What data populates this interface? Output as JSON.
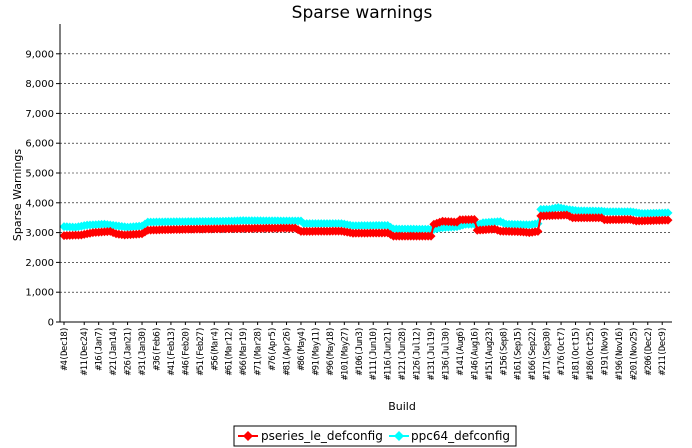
{
  "chart_data": {
    "type": "line",
    "title": "Sparse warnings",
    "xlabel": "Build",
    "ylabel": "Sparse Warnings",
    "ylim": [
      0,
      10000
    ],
    "yticks": [
      0,
      1000,
      2000,
      3000,
      4000,
      5000,
      6000,
      7000,
      8000,
      9000
    ],
    "ytick_labels": [
      "0",
      "1,000",
      "2,000",
      "3,000",
      "4,000",
      "5,000",
      "6,000",
      "7,000",
      "8,000",
      "9,000"
    ],
    "xrange": [
      4,
      213
    ],
    "xticks": [
      {
        "x": 4,
        "label": "#4(Dec18)"
      },
      {
        "x": 11,
        "label": "#11(Dec24)"
      },
      {
        "x": 16,
        "label": "#16(Jan7)"
      },
      {
        "x": 21,
        "label": "#21(Jan14)"
      },
      {
        "x": 26,
        "label": "#26(Jan21)"
      },
      {
        "x": 31,
        "label": "#31(Jan30)"
      },
      {
        "x": 36,
        "label": "#36(Feb6)"
      },
      {
        "x": 41,
        "label": "#41(Feb13)"
      },
      {
        "x": 46,
        "label": "#46(Feb20)"
      },
      {
        "x": 51,
        "label": "#51(Feb27)"
      },
      {
        "x": 56,
        "label": "#56(Mar4)"
      },
      {
        "x": 61,
        "label": "#61(Mar12)"
      },
      {
        "x": 66,
        "label": "#66(Mar19)"
      },
      {
        "x": 71,
        "label": "#71(Mar28)"
      },
      {
        "x": 76,
        "label": "#76(Apr5)"
      },
      {
        "x": 81,
        "label": "#81(Apr26)"
      },
      {
        "x": 86,
        "label": "#86(May4)"
      },
      {
        "x": 91,
        "label": "#91(May11)"
      },
      {
        "x": 96,
        "label": "#96(May18)"
      },
      {
        "x": 101,
        "label": "#101(May27)"
      },
      {
        "x": 106,
        "label": "#106(Jun3)"
      },
      {
        "x": 111,
        "label": "#111(Jun10)"
      },
      {
        "x": 116,
        "label": "#116(Jun21)"
      },
      {
        "x": 121,
        "label": "#121(Jun28)"
      },
      {
        "x": 126,
        "label": "#126(Jul12)"
      },
      {
        "x": 131,
        "label": "#131(Jul19)"
      },
      {
        "x": 136,
        "label": "#136(Jul30)"
      },
      {
        "x": 141,
        "label": "#141(Aug6)"
      },
      {
        "x": 146,
        "label": "#146(Aug16)"
      },
      {
        "x": 151,
        "label": "#151(Aug23)"
      },
      {
        "x": 156,
        "label": "#156(Sep8)"
      },
      {
        "x": 161,
        "label": "#161(Sep15)"
      },
      {
        "x": 166,
        "label": "#166(Sep22)"
      },
      {
        "x": 171,
        "label": "#171(Sep30)"
      },
      {
        "x": 176,
        "label": "#176(Oct7)"
      },
      {
        "x": 181,
        "label": "#181(Oct15)"
      },
      {
        "x": 186,
        "label": "#186(Oct25)"
      },
      {
        "x": 191,
        "label": "#191(Nov9)"
      },
      {
        "x": 196,
        "label": "#196(Nov16)"
      },
      {
        "x": 201,
        "label": "#201(Nov25)"
      },
      {
        "x": 206,
        "label": "#206(Dec2)"
      },
      {
        "x": 211,
        "label": "#211(Dec9)"
      }
    ],
    "series": [
      {
        "name": "pseries_le_defconfig",
        "color": "#ff0000",
        "marker": "diamond",
        "segments": [
          [
            4,
            2900
          ],
          [
            10,
            2920
          ],
          [
            14,
            3000
          ],
          [
            20,
            3040
          ],
          [
            22,
            2960
          ],
          [
            25,
            2920
          ],
          [
            28,
            2940
          ],
          [
            31,
            2960
          ],
          [
            33,
            3080
          ],
          [
            40,
            3100
          ],
          [
            60,
            3130
          ],
          [
            80,
            3150
          ],
          [
            84,
            3150
          ],
          [
            86,
            3040
          ],
          [
            100,
            3050
          ],
          [
            104,
            2980
          ],
          [
            116,
            2990
          ],
          [
            118,
            2880
          ],
          [
            130,
            2880
          ],
          [
            132,
            3280
          ],
          [
            135,
            3380
          ],
          [
            140,
            3350
          ],
          [
            141,
            3430
          ],
          [
            146,
            3440
          ],
          [
            147,
            3080
          ],
          [
            153,
            3120
          ],
          [
            155,
            3050
          ],
          [
            162,
            3030
          ],
          [
            165,
            3000
          ],
          [
            168,
            3040
          ],
          [
            169,
            3560
          ],
          [
            178,
            3590
          ],
          [
            180,
            3500
          ],
          [
            190,
            3500
          ],
          [
            191,
            3430
          ],
          [
            200,
            3440
          ],
          [
            202,
            3390
          ],
          [
            213,
            3420
          ]
        ]
      },
      {
        "name": "ppc64_defconfig",
        "color": "#00ffff",
        "marker": "diamond",
        "segments": [
          [
            4,
            3200
          ],
          [
            8,
            3180
          ],
          [
            12,
            3250
          ],
          [
            18,
            3280
          ],
          [
            22,
            3230
          ],
          [
            26,
            3180
          ],
          [
            31,
            3220
          ],
          [
            33,
            3350
          ],
          [
            40,
            3360
          ],
          [
            60,
            3380
          ],
          [
            66,
            3400
          ],
          [
            80,
            3390
          ],
          [
            86,
            3390
          ],
          [
            87,
            3300
          ],
          [
            100,
            3300
          ],
          [
            104,
            3230
          ],
          [
            116,
            3240
          ],
          [
            118,
            3120
          ],
          [
            132,
            3110
          ],
          [
            134,
            3160
          ],
          [
            140,
            3200
          ],
          [
            143,
            3280
          ],
          [
            148,
            3290
          ],
          [
            149,
            3330
          ],
          [
            155,
            3370
          ],
          [
            157,
            3280
          ],
          [
            165,
            3260
          ],
          [
            168,
            3300
          ],
          [
            169,
            3780
          ],
          [
            172,
            3780
          ],
          [
            175,
            3840
          ],
          [
            178,
            3780
          ],
          [
            182,
            3730
          ],
          [
            190,
            3720
          ],
          [
            192,
            3700
          ],
          [
            200,
            3700
          ],
          [
            204,
            3640
          ],
          [
            213,
            3660
          ]
        ]
      }
    ],
    "legend": {
      "position": "bottom-center",
      "border": true
    }
  }
}
